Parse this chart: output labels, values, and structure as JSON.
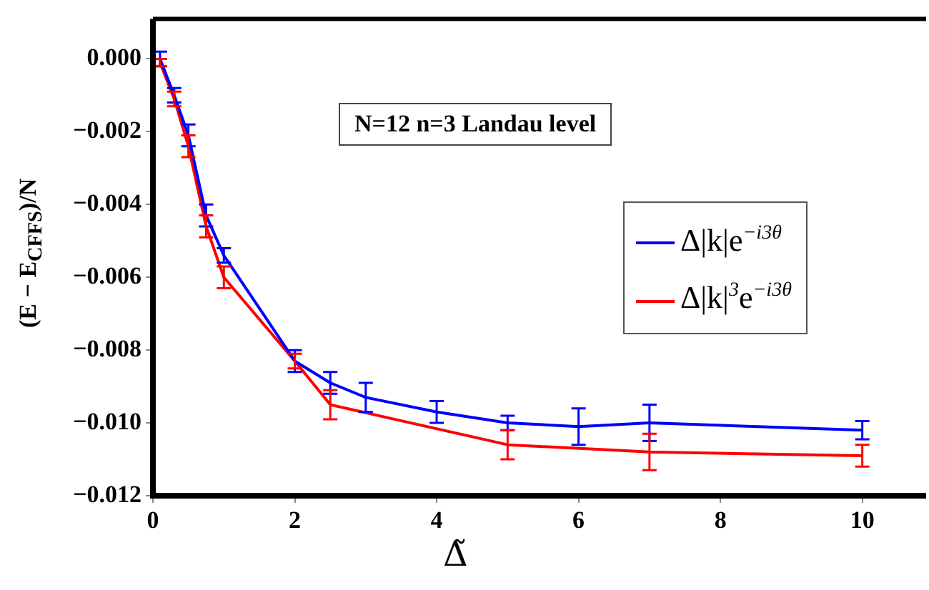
{
  "chart_data": {
    "type": "line",
    "xlabel": "Δ̃",
    "ylabel": "(E − E$_{CFFS}$)/N",
    "annotations": [
      "N=12  n=3 Landau level"
    ],
    "xlim": [
      0,
      10.9
    ],
    "ylim": [
      -0.012,
      0.0011
    ],
    "xticks": [
      0,
      2,
      4,
      6,
      8,
      10
    ],
    "yticks": [
      {
        "value": 0,
        "label": "0.000"
      },
      {
        "value": -0.002,
        "label": "−0.002"
      },
      {
        "value": -0.004,
        "label": "−0.004"
      },
      {
        "value": -0.006,
        "label": "−0.006"
      },
      {
        "value": -0.008,
        "label": "−0.008"
      },
      {
        "value": -0.01,
        "label": "−0.010"
      },
      {
        "value": -0.012,
        "label": "−0.012"
      }
    ],
    "grid": false,
    "legend": "right",
    "line_style": "solid",
    "series": [
      {
        "name": "Δ|k|e$^{−i3θ}$",
        "color": "#0000ff",
        "x": [
          0.1,
          0.3,
          0.5,
          0.75,
          1,
          2,
          2.5,
          3,
          4,
          5,
          6,
          7,
          10
        ],
        "values": [
          0.0,
          -0.001,
          -0.0021,
          -0.0043,
          -0.0054,
          -0.0083,
          -0.0089,
          -0.0093,
          -0.0097,
          -0.01,
          -0.0101,
          -0.01,
          -0.0102
        ],
        "errors": [
          0.0002,
          0.0002,
          0.0003,
          0.0003,
          0.0002,
          0.0003,
          0.0003,
          0.0004,
          0.0003,
          0.0002,
          0.0005,
          0.0005,
          0.00025
        ]
      },
      {
        "name": "Δ|k|$^{3}$e$^{−i3θ}$",
        "color": "#ff0000",
        "x": [
          0.1,
          0.3,
          0.5,
          0.75,
          1,
          2,
          2.5,
          5,
          7,
          10
        ],
        "values": [
          -0.0001,
          -0.0011,
          -0.0024,
          -0.0046,
          -0.006,
          -0.0083,
          -0.0095,
          -0.0106,
          -0.0108,
          -0.0109
        ],
        "errors": [
          0.0001,
          0.0002,
          0.0003,
          0.0003,
          0.0003,
          0.0002,
          0.0004,
          0.0004,
          0.0005,
          0.0003
        ]
      }
    ]
  }
}
